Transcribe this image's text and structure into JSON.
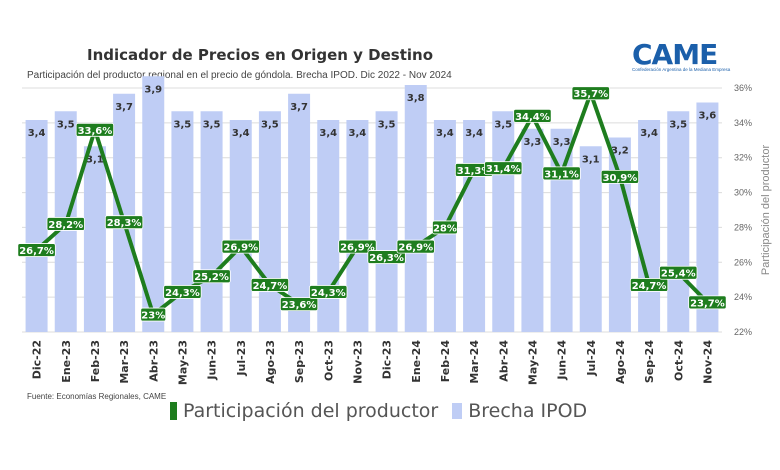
{
  "title": "Indicador de Precios en Origen y Destino",
  "subtitle": "Participación del productor regional en el precio de góndola. Brecha IPOD. Dic 2022 - Nov 2024",
  "source": "Fuente: Economías Regionales, CAME",
  "logo": {
    "text": "CAME",
    "tagline": "Confederación Argentina de la Mediana Empresa"
  },
  "colors": {
    "bar": "#bfcdf5",
    "line": "#1e7d1e",
    "label_bg": "#1e7d1e",
    "label_text": "#ffffff"
  },
  "chart_data": {
    "type": "bar",
    "categories": [
      "Dic-22",
      "Ene-23",
      "Feb-23",
      "Mar-23",
      "Abr-23",
      "May-23",
      "Jun-23",
      "Jul-23",
      "Ago-23",
      "Sep-23",
      "Oct-23",
      "Nov-23",
      "Dic-23",
      "Ene-24",
      "Feb-24",
      "Mar-24",
      "Abr-24",
      "May-24",
      "Jun-24",
      "Jul-24",
      "Ago-24",
      "Sep-24",
      "Oct-24",
      "Nov-24"
    ],
    "series": [
      {
        "name": "Brecha IPOD",
        "type": "bar",
        "values": [
          3.4,
          3.5,
          3.1,
          3.7,
          3.9,
          3.5,
          3.5,
          3.4,
          3.5,
          3.7,
          3.4,
          3.4,
          3.5,
          3.8,
          3.4,
          3.4,
          3.5,
          3.3,
          3.3,
          3.1,
          3.2,
          3.4,
          3.5,
          3.6
        ],
        "labels": [
          "3,4",
          "3,5",
          "3,1",
          "3,7",
          "3,9",
          "3,5",
          "3,5",
          "3,4",
          "3,5",
          "3,7",
          "3,4",
          "3,4",
          "3,5",
          "3,8",
          "3,4",
          "3,4",
          "3,5",
          "3,3",
          "3,3",
          "3,1",
          "3,2",
          "3,4",
          "3,5",
          "3,6"
        ]
      },
      {
        "name": "Participación del productor",
        "type": "line",
        "values": [
          26.7,
          28.2,
          33.6,
          28.3,
          23.0,
          24.3,
          25.2,
          26.9,
          24.7,
          23.6,
          24.3,
          26.9,
          26.3,
          26.9,
          28.0,
          31.3,
          31.4,
          34.4,
          31.1,
          35.7,
          30.9,
          24.7,
          25.4,
          23.7
        ],
        "labels": [
          "26,7%",
          "28,2%",
          "33,6%",
          "28,3%",
          "23%",
          "24,3%",
          "25,2%",
          "26,9%",
          "24,7%",
          "23,6%",
          "24,3%",
          "26,9%",
          "26,3%",
          "26,9%",
          "28%",
          "31,3%",
          "31,4%",
          "34,4%",
          "31,1%",
          "35,7%",
          "30,9%",
          "24,7%",
          "25,4%",
          "23,7%"
        ]
      }
    ],
    "y_axis_right": {
      "label": "Participación del productor",
      "ticks": [
        "22%",
        "24%",
        "26%",
        "28%",
        "30%",
        "32%",
        "34%",
        "36%"
      ],
      "range": [
        22,
        36
      ]
    },
    "grid": true,
    "legend_position": "bottom"
  },
  "legend": {
    "line": "Participación del productor",
    "bar": "Brecha IPOD"
  }
}
